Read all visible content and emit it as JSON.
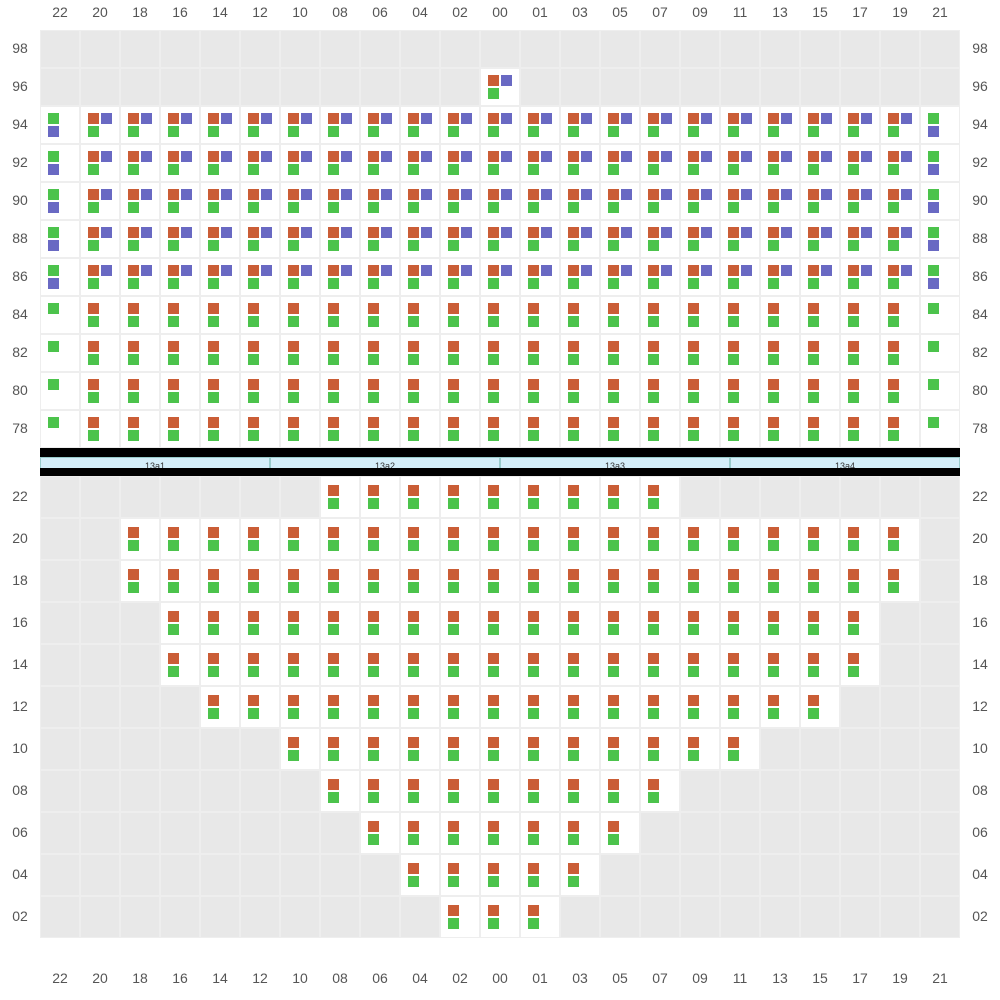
{
  "image_dimensions": [
    1000,
    1000
  ],
  "colors": {
    "background": "#ffffff",
    "cell_empty": "#e8e8e8",
    "cell_filled": "#ffffff",
    "border": "#eeeeee",
    "black_bar": "#000000",
    "slot_bg": "#d4eef9",
    "slot_border": "#99cccc",
    "label_text": "#555555",
    "marker_orange": "#ca5d36",
    "marker_blue": "#6969c3",
    "marker_green": "#4cc34c"
  },
  "typography": {
    "label_fontsize": 14,
    "slot_fontsize": 9,
    "font_family": "Arial, sans-serif"
  },
  "column_labels": [
    "22",
    "20",
    "18",
    "16",
    "14",
    "12",
    "10",
    "08",
    "06",
    "04",
    "02",
    "00",
    "01",
    "03",
    "05",
    "07",
    "09",
    "11",
    "13",
    "15",
    "17",
    "19",
    "21"
  ],
  "slot_labels": [
    "13a1",
    "13a2",
    "13a3",
    "13a4"
  ],
  "top_section": {
    "row_labels": [
      "98",
      "96",
      "94",
      "92",
      "90",
      "88",
      "86",
      "84",
      "82",
      "80",
      "78"
    ],
    "pattern_types": {
      "OBG": [
        "orange",
        "blue",
        "green",
        "hidden"
      ],
      "OG": [
        "orange",
        "hidden",
        "green",
        "hidden"
      ],
      "GB": [
        "green",
        "hidden",
        "blue",
        "hidden"
      ],
      "G": [
        "green",
        "hidden",
        "hidden",
        "hidden"
      ]
    },
    "rows": [
      {
        "label": "98",
        "cells": [
          0,
          0,
          0,
          0,
          0,
          0,
          0,
          0,
          0,
          0,
          0,
          0,
          0,
          0,
          0,
          0,
          0,
          0,
          0,
          0,
          0,
          0,
          0
        ]
      },
      {
        "label": "96",
        "cells": [
          0,
          0,
          0,
          0,
          0,
          0,
          0,
          0,
          0,
          0,
          0,
          "OBG",
          0,
          0,
          0,
          0,
          0,
          0,
          0,
          0,
          0,
          0,
          0
        ]
      },
      {
        "label": "94",
        "cells": [
          "GB",
          "OBG",
          "OBG",
          "OBG",
          "OBG",
          "OBG",
          "OBG",
          "OBG",
          "OBG",
          "OBG",
          "OBG",
          "OBG",
          "OBG",
          "OBG",
          "OBG",
          "OBG",
          "OBG",
          "OBG",
          "OBG",
          "OBG",
          "OBG",
          "OBG",
          "GB"
        ]
      },
      {
        "label": "92",
        "cells": [
          "GB",
          "OBG",
          "OBG",
          "OBG",
          "OBG",
          "OBG",
          "OBG",
          "OBG",
          "OBG",
          "OBG",
          "OBG",
          "OBG",
          "OBG",
          "OBG",
          "OBG",
          "OBG",
          "OBG",
          "OBG",
          "OBG",
          "OBG",
          "OBG",
          "OBG",
          "GB"
        ]
      },
      {
        "label": "90",
        "cells": [
          "GB",
          "OBG",
          "OBG",
          "OBG",
          "OBG",
          "OBG",
          "OBG",
          "OBG",
          "OBG",
          "OBG",
          "OBG",
          "OBG",
          "OBG",
          "OBG",
          "OBG",
          "OBG",
          "OBG",
          "OBG",
          "OBG",
          "OBG",
          "OBG",
          "OBG",
          "GB"
        ]
      },
      {
        "label": "88",
        "cells": [
          "GB",
          "OBG",
          "OBG",
          "OBG",
          "OBG",
          "OBG",
          "OBG",
          "OBG",
          "OBG",
          "OBG",
          "OBG",
          "OBG",
          "OBG",
          "OBG",
          "OBG",
          "OBG",
          "OBG",
          "OBG",
          "OBG",
          "OBG",
          "OBG",
          "OBG",
          "GB"
        ]
      },
      {
        "label": "86",
        "cells": [
          "GB",
          "OBG",
          "OBG",
          "OBG",
          "OBG",
          "OBG",
          "OBG",
          "OBG",
          "OBG",
          "OBG",
          "OBG",
          "OBG",
          "OBG",
          "OBG",
          "OBG",
          "OBG",
          "OBG",
          "OBG",
          "OBG",
          "OBG",
          "OBG",
          "OBG",
          "GB"
        ]
      },
      {
        "label": "84",
        "cells": [
          "G",
          "OG",
          "OG",
          "OG",
          "OG",
          "OG",
          "OG",
          "OG",
          "OG",
          "OG",
          "OG",
          "OG",
          "OG",
          "OG",
          "OG",
          "OG",
          "OG",
          "OG",
          "OG",
          "OG",
          "OG",
          "OG",
          "G"
        ]
      },
      {
        "label": "82",
        "cells": [
          "G",
          "OG",
          "OG",
          "OG",
          "OG",
          "OG",
          "OG",
          "OG",
          "OG",
          "OG",
          "OG",
          "OG",
          "OG",
          "OG",
          "OG",
          "OG",
          "OG",
          "OG",
          "OG",
          "OG",
          "OG",
          "OG",
          "G"
        ]
      },
      {
        "label": "80",
        "cells": [
          "G",
          "OG",
          "OG",
          "OG",
          "OG",
          "OG",
          "OG",
          "OG",
          "OG",
          "OG",
          "OG",
          "OG",
          "OG",
          "OG",
          "OG",
          "OG",
          "OG",
          "OG",
          "OG",
          "OG",
          "OG",
          "OG",
          "G"
        ]
      },
      {
        "label": "78",
        "cells": [
          "G",
          "OG",
          "OG",
          "OG",
          "OG",
          "OG",
          "OG",
          "OG",
          "OG",
          "OG",
          "OG",
          "OG",
          "OG",
          "OG",
          "OG",
          "OG",
          "OG",
          "OG",
          "OG",
          "OG",
          "OG",
          "OG",
          "G"
        ]
      }
    ]
  },
  "bottom_section": {
    "row_labels": [
      "22",
      "20",
      "18",
      "16",
      "14",
      "12",
      "10",
      "08",
      "06",
      "04",
      "02"
    ],
    "pattern_types": {
      "OG": [
        "orange",
        "hidden",
        "green",
        "hidden"
      ]
    },
    "rows": [
      {
        "label": "22",
        "cells": [
          0,
          0,
          0,
          0,
          0,
          0,
          0,
          "OG",
          "OG",
          "OG",
          "OG",
          "OG",
          "OG",
          "OG",
          "OG",
          "OG",
          0,
          0,
          0,
          0,
          0,
          0,
          0
        ]
      },
      {
        "label": "20",
        "cells": [
          0,
          0,
          "OG",
          "OG",
          "OG",
          "OG",
          "OG",
          "OG",
          "OG",
          "OG",
          "OG",
          "OG",
          "OG",
          "OG",
          "OG",
          "OG",
          "OG",
          "OG",
          "OG",
          "OG",
          "OG",
          "OG",
          0
        ]
      },
      {
        "label": "18",
        "cells": [
          0,
          0,
          "OG",
          "OG",
          "OG",
          "OG",
          "OG",
          "OG",
          "OG",
          "OG",
          "OG",
          "OG",
          "OG",
          "OG",
          "OG",
          "OG",
          "OG",
          "OG",
          "OG",
          "OG",
          "OG",
          "OG",
          0
        ]
      },
      {
        "label": "16",
        "cells": [
          0,
          0,
          0,
          "OG",
          "OG",
          "OG",
          "OG",
          "OG",
          "OG",
          "OG",
          "OG",
          "OG",
          "OG",
          "OG",
          "OG",
          "OG",
          "OG",
          "OG",
          "OG",
          "OG",
          "OG",
          0,
          0
        ]
      },
      {
        "label": "14",
        "cells": [
          0,
          0,
          0,
          "OG",
          "OG",
          "OG",
          "OG",
          "OG",
          "OG",
          "OG",
          "OG",
          "OG",
          "OG",
          "OG",
          "OG",
          "OG",
          "OG",
          "OG",
          "OG",
          "OG",
          "OG",
          0,
          0
        ]
      },
      {
        "label": "12",
        "cells": [
          0,
          0,
          0,
          0,
          "OG",
          "OG",
          "OG",
          "OG",
          "OG",
          "OG",
          "OG",
          "OG",
          "OG",
          "OG",
          "OG",
          "OG",
          "OG",
          "OG",
          "OG",
          "OG",
          0,
          0,
          0
        ]
      },
      {
        "label": "10",
        "cells": [
          0,
          0,
          0,
          0,
          0,
          0,
          "OG",
          "OG",
          "OG",
          "OG",
          "OG",
          "OG",
          "OG",
          "OG",
          "OG",
          "OG",
          "OG",
          "OG",
          0,
          0,
          0,
          0,
          0
        ]
      },
      {
        "label": "08",
        "cells": [
          0,
          0,
          0,
          0,
          0,
          0,
          0,
          "OG",
          "OG",
          "OG",
          "OG",
          "OG",
          "OG",
          "OG",
          "OG",
          "OG",
          0,
          0,
          0,
          0,
          0,
          0,
          0
        ]
      },
      {
        "label": "06",
        "cells": [
          0,
          0,
          0,
          0,
          0,
          0,
          0,
          0,
          "OG",
          "OG",
          "OG",
          "OG",
          "OG",
          "OG",
          "OG",
          0,
          0,
          0,
          0,
          0,
          0,
          0,
          0
        ]
      },
      {
        "label": "04",
        "cells": [
          0,
          0,
          0,
          0,
          0,
          0,
          0,
          0,
          0,
          "OG",
          "OG",
          "OG",
          "OG",
          "OG",
          0,
          0,
          0,
          0,
          0,
          0,
          0,
          0,
          0
        ]
      },
      {
        "label": "02",
        "cells": [
          0,
          0,
          0,
          0,
          0,
          0,
          0,
          0,
          0,
          0,
          "OG",
          "OG",
          "OG",
          0,
          0,
          0,
          0,
          0,
          0,
          0,
          0,
          0,
          0
        ]
      }
    ]
  }
}
